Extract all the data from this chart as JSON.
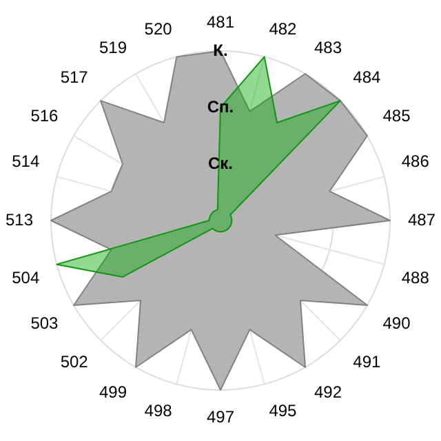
{
  "chart_data": {
    "type": "radar",
    "categories": [
      "481",
      "482",
      "483",
      "484",
      "485",
      "486",
      "487",
      "488",
      "490",
      "491",
      "492",
      "495",
      "497",
      "498",
      "499",
      "502",
      "503",
      "504",
      "513",
      "514",
      "516",
      "517",
      "519",
      "520"
    ],
    "series": [
      {
        "color": "#b4b4b4",
        "values": [
          3,
          2,
          3,
          3,
          3,
          2,
          3,
          1,
          3,
          2,
          3,
          2,
          3,
          2,
          3,
          2,
          3,
          2,
          3,
          2,
          2,
          3,
          2,
          3
        ]
      },
      {
        "color": "#10a810",
        "values": [
          2,
          3,
          2,
          3,
          0.2,
          0.2,
          0.2,
          0.2,
          0.2,
          0.2,
          0.2,
          0.2,
          0.2,
          0.2,
          0.2,
          0.2,
          2,
          3,
          0.2,
          0.2,
          0.2,
          0.2,
          0.2,
          0.2
        ]
      }
    ],
    "ylim": [
      0,
      3
    ],
    "yticks": [
      {
        "value": 1,
        "label": "Ск."
      },
      {
        "value": 2,
        "label": "Сп."
      },
      {
        "value": 3,
        "label": "К."
      }
    ],
    "grid": true,
    "legend": false,
    "marker": "none"
  }
}
